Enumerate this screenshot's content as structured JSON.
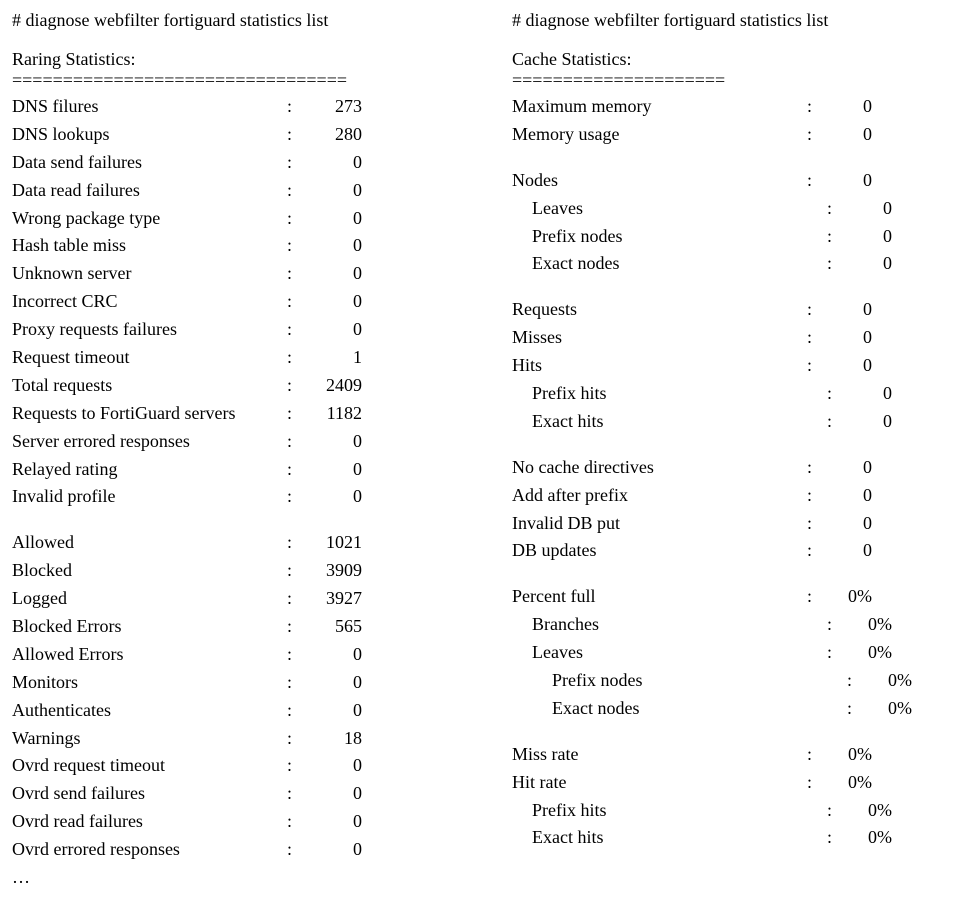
{
  "left": {
    "command": "# diagnose webfilter fortiguard statistics list",
    "title": "Raring Statistics:",
    "divider": "=================================",
    "group1": [
      {
        "label": "DNS filures",
        "value": "273"
      },
      {
        "label": "DNS lookups",
        "value": "280"
      },
      {
        "label": "Data send failures",
        "value": "0"
      },
      {
        "label": "Data read failures",
        "value": "0"
      },
      {
        "label": "Wrong package type",
        "value": "0"
      },
      {
        "label": "Hash table miss",
        "value": "0"
      },
      {
        "label": "Unknown server",
        "value": "0"
      },
      {
        "label": "Incorrect CRC",
        "value": "0"
      },
      {
        "label": "Proxy requests failures",
        "value": "0"
      },
      {
        "label": "Request timeout",
        "value": "1"
      },
      {
        "label": "Total requests",
        "value": "2409"
      },
      {
        "label": "Requests to FortiGuard servers",
        "value": "1182"
      },
      {
        "label": "Server errored responses",
        "value": "0"
      },
      {
        "label": "Relayed rating",
        "value": "0"
      },
      {
        "label": "Invalid profile",
        "value": "0"
      }
    ],
    "group2": [
      {
        "label": "Allowed",
        "value": "1021"
      },
      {
        "label": "Blocked",
        "value": "3909"
      },
      {
        "label": "Logged",
        "value": "3927"
      },
      {
        "label": "Blocked Errors",
        "value": "565"
      },
      {
        "label": "Allowed Errors",
        "value": "0"
      },
      {
        "label": "Monitors",
        "value": "0"
      },
      {
        "label": "Authenticates",
        "value": "0"
      },
      {
        "label": "Warnings",
        "value": "18"
      },
      {
        "label": "Ovrd request timeout",
        "value": "0"
      },
      {
        "label": "Ovrd send failures",
        "value": "0"
      },
      {
        "label": "Ovrd read failures",
        "value": "0"
      },
      {
        "label": "Ovrd errored responses",
        "value": "0"
      }
    ],
    "ellipsis": "…"
  },
  "right": {
    "command": "# diagnose webfilter fortiguard statistics list",
    "title": "Cache Statistics:",
    "divider": "=====================",
    "group1": [
      {
        "label": "Maximum memory",
        "value": "0"
      },
      {
        "label": "Memory usage",
        "value": "0"
      }
    ],
    "group2": [
      {
        "label": "Nodes",
        "value": "0",
        "indent": 0
      },
      {
        "label": "Leaves",
        "value": "0",
        "indent": 1
      },
      {
        "label": "Prefix nodes",
        "value": "0",
        "indent": 1
      },
      {
        "label": "Exact nodes",
        "value": "0",
        "indent": 1
      }
    ],
    "group3": [
      {
        "label": "Requests",
        "value": "0",
        "indent": 0
      },
      {
        "label": "Misses",
        "value": "0",
        "indent": 0
      },
      {
        "label": "Hits",
        "value": "0",
        "indent": 0
      },
      {
        "label": "Prefix hits",
        "value": "0",
        "indent": 1
      },
      {
        "label": "Exact hits",
        "value": "0",
        "indent": 1
      }
    ],
    "group4": [
      {
        "label": "No cache directives",
        "value": "0"
      },
      {
        "label": "Add after prefix",
        "value": "0"
      },
      {
        "label": "Invalid DB put",
        "value": "0"
      },
      {
        "label": "DB updates",
        "value": "0"
      }
    ],
    "group5": [
      {
        "label": "Percent full",
        "value": "0%",
        "indent": 0
      },
      {
        "label": "Branches",
        "value": "0%",
        "indent": 1
      },
      {
        "label": "Leaves",
        "value": "0%",
        "indent": 1
      },
      {
        "label": "Prefix nodes",
        "value": "0%",
        "indent": 2
      },
      {
        "label": "Exact nodes",
        "value": "0%",
        "indent": 2
      }
    ],
    "group6": [
      {
        "label": "Miss rate",
        "value": "0%",
        "indent": 0
      },
      {
        "label": "Hit rate",
        "value": "0%",
        "indent": 0
      },
      {
        "label": "Prefix hits",
        "value": "0%",
        "indent": 1
      },
      {
        "label": "Exact hits",
        "value": "0%",
        "indent": 1
      }
    ]
  }
}
